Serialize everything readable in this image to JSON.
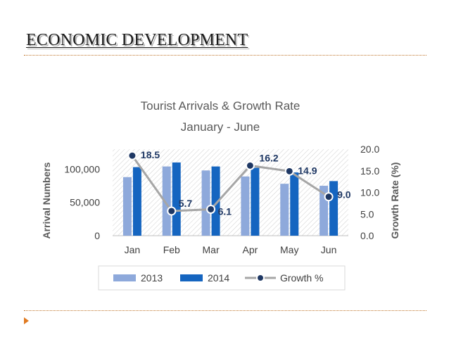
{
  "slide": {
    "title": "ECONOMIC DEVELOPMENT"
  },
  "colors": {
    "series_2013": "#8ea9db",
    "series_2014": "#1565c0",
    "growth_line": "#a6a6a6",
    "growth_marker": "#1f3864",
    "accent_rule": "#c0762c",
    "bullet": "#e07b22"
  },
  "chart_data": {
    "type": "bar",
    "title": "Tourist Arrivals & Growth Rate",
    "subtitle": "January - June",
    "categories": [
      "Jan",
      "Feb",
      "Mar",
      "Apr",
      "May",
      "Jun"
    ],
    "series": [
      {
        "name": "2013",
        "axis": "left",
        "values": [
          88000,
          104000,
          98000,
          89000,
          78000,
          75000
        ]
      },
      {
        "name": "2014",
        "axis": "left",
        "values": [
          103000,
          110000,
          104000,
          102000,
          95000,
          82000
        ]
      },
      {
        "name": "Growth %",
        "axis": "right",
        "type": "line",
        "values": [
          18.5,
          5.7,
          6.1,
          16.2,
          14.9,
          9.0
        ],
        "data_labels": [
          "18.5",
          "5.7",
          "6.1",
          "16.2",
          "14.9",
          "9.0"
        ]
      }
    ],
    "ylabel": "Arrival Numbers",
    "ylim": [
      0,
      130000
    ],
    "yticks": [
      0,
      50000,
      100000
    ],
    "ytick_labels": [
      "0",
      "50,000",
      "100,000"
    ],
    "y2label": "Growth Rate (%)",
    "y2lim": [
      0,
      20
    ],
    "y2ticks": [
      0,
      5,
      10,
      15,
      20
    ],
    "y2tick_labels": [
      "0.0",
      "5.0",
      "10.0",
      "15.0",
      "20.0"
    ],
    "legend": [
      "2013",
      "2014",
      "Growth %"
    ],
    "legend_position": "bottom",
    "grid": false,
    "background": "diagonal-hatch"
  }
}
